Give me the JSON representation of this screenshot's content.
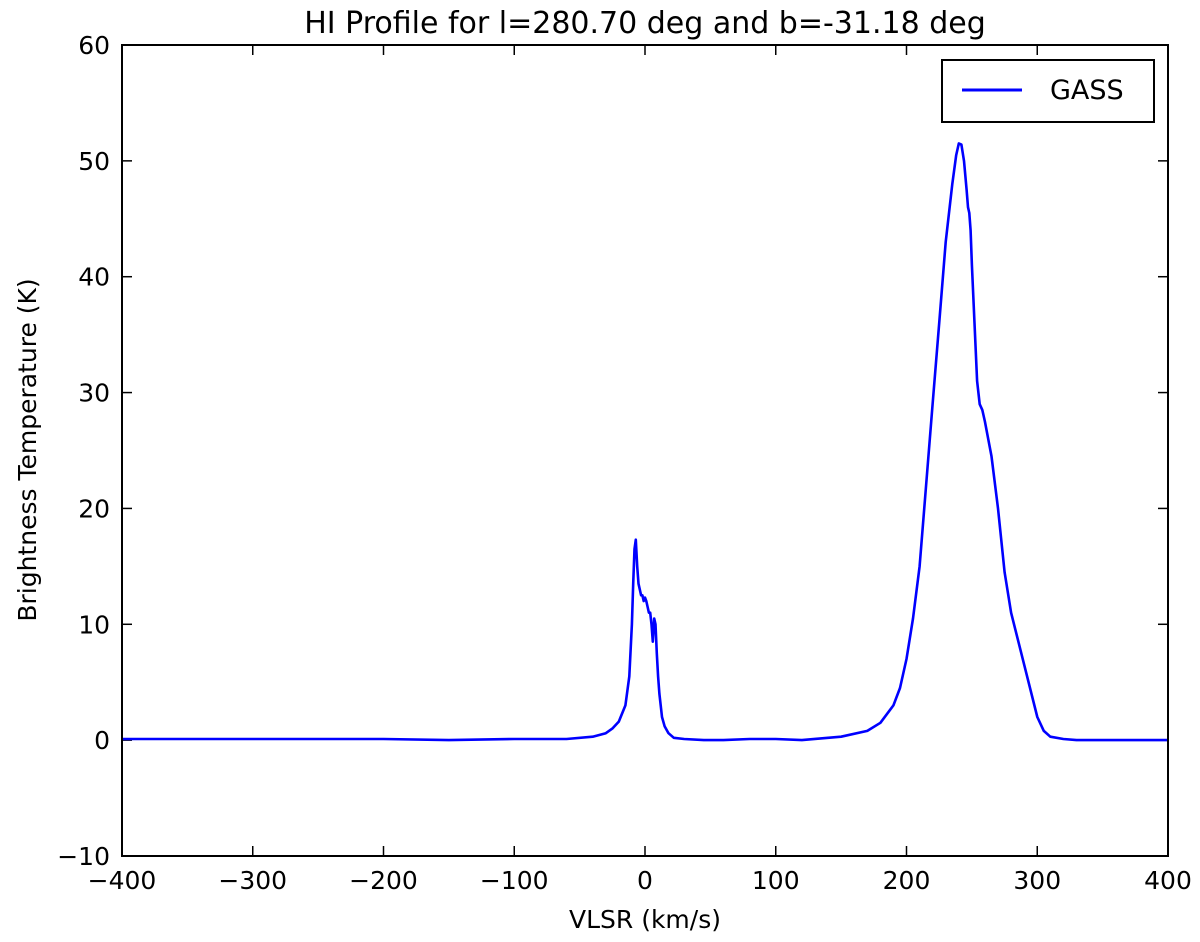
{
  "chart_data": {
    "type": "line",
    "title": "HI Profile for l=280.70 deg and b=-31.18 deg",
    "xlabel": "VLSR (km/s)",
    "ylabel": "Brightness Temperature (K)",
    "xlim": [
      -400,
      400
    ],
    "ylim": [
      -10,
      60
    ],
    "xticks": [
      -400,
      -300,
      -200,
      -100,
      0,
      100,
      200,
      300,
      400
    ],
    "xtick_labels": [
      "−400",
      "−300",
      "−200",
      "−100",
      "0",
      "100",
      "200",
      "300",
      "400"
    ],
    "yticks": [
      -10,
      0,
      10,
      20,
      30,
      40,
      50,
      60
    ],
    "ytick_labels": [
      "−10",
      "0",
      "10",
      "20",
      "30",
      "40",
      "50",
      "60"
    ],
    "grid": false,
    "legend_position": "top-right",
    "series": [
      {
        "name": "GASS",
        "color": "#0000ff",
        "x": [
          -400,
          -350,
          -300,
          -250,
          -200,
          -150,
          -100,
          -60,
          -40,
          -30,
          -25,
          -20,
          -15,
          -12,
          -10,
          -9,
          -8,
          -7,
          -6,
          -5,
          -4,
          -3,
          -2,
          -1,
          0,
          1,
          2,
          3,
          4,
          5,
          6,
          7,
          8,
          9,
          10,
          11,
          12,
          13,
          15,
          18,
          22,
          30,
          45,
          60,
          80,
          100,
          120,
          150,
          170,
          180,
          190,
          195,
          200,
          205,
          210,
          215,
          220,
          225,
          230,
          235,
          238,
          240,
          242,
          244,
          246,
          247,
          248,
          249,
          250,
          252,
          254,
          256,
          258,
          260,
          265,
          270,
          275,
          280,
          290,
          300,
          305,
          310,
          320,
          330,
          350,
          370,
          400
        ],
        "y": [
          0.1,
          0.1,
          0.1,
          0.1,
          0.1,
          0.0,
          0.1,
          0.1,
          0.3,
          0.6,
          1.0,
          1.6,
          3.0,
          5.5,
          10.0,
          13.5,
          16.5,
          17.3,
          15.0,
          13.5,
          13.0,
          12.5,
          12.5,
          12.0,
          12.3,
          12.0,
          11.5,
          11.0,
          11.0,
          10.0,
          8.5,
          10.5,
          10.0,
          7.5,
          5.5,
          4.0,
          3.0,
          2.0,
          1.2,
          0.6,
          0.2,
          0.1,
          0.0,
          0.0,
          0.1,
          0.1,
          0.0,
          0.3,
          0.8,
          1.5,
          3.0,
          4.5,
          7.0,
          10.5,
          15.0,
          22.0,
          29.0,
          36.0,
          43.0,
          48.0,
          50.5,
          51.5,
          51.4,
          50.0,
          47.5,
          46.0,
          45.5,
          44.0,
          41.0,
          36.0,
          31.0,
          29.0,
          28.5,
          27.5,
          24.5,
          20.0,
          14.5,
          11.0,
          6.5,
          2.0,
          0.8,
          0.3,
          0.1,
          0.0,
          0.0,
          0.0,
          0.0
        ]
      }
    ]
  }
}
